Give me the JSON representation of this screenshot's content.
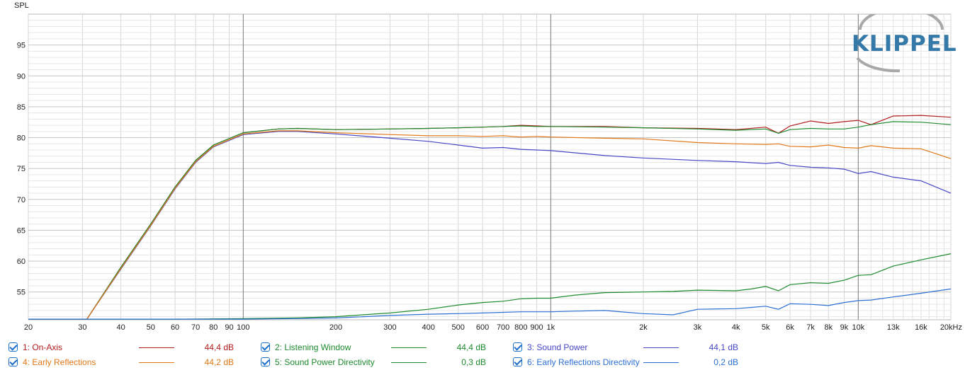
{
  "logo": {
    "text": "KLIPPEL"
  },
  "chart_data": {
    "type": "line",
    "ylabel": "SPL",
    "xlabel": "",
    "xscale": "log",
    "xlim": [
      20,
      20000
    ],
    "ylim": [
      50.5,
      100
    ],
    "x_tick_labels": [
      {
        "v": 20,
        "t": "20"
      },
      {
        "v": 30,
        "t": "30"
      },
      {
        "v": 40,
        "t": "40"
      },
      {
        "v": 50,
        "t": "50"
      },
      {
        "v": 60,
        "t": "60"
      },
      {
        "v": 70,
        "t": "70"
      },
      {
        "v": 80,
        "t": "80"
      },
      {
        "v": 90,
        "t": "90"
      },
      {
        "v": 100,
        "t": "100"
      },
      {
        "v": 200,
        "t": "200"
      },
      {
        "v": 300,
        "t": "300"
      },
      {
        "v": 400,
        "t": "400"
      },
      {
        "v": 500,
        "t": "500"
      },
      {
        "v": 600,
        "t": "600"
      },
      {
        "v": 700,
        "t": "700"
      },
      {
        "v": 800,
        "t": "800"
      },
      {
        "v": 900,
        "t": "900"
      },
      {
        "v": 1000,
        "t": "1k"
      },
      {
        "v": 2000,
        "t": "2k"
      },
      {
        "v": 3000,
        "t": "3k"
      },
      {
        "v": 4000,
        "t": "4k"
      },
      {
        "v": 5000,
        "t": "5k"
      },
      {
        "v": 6000,
        "t": "6k"
      },
      {
        "v": 7000,
        "t": "7k"
      },
      {
        "v": 8000,
        "t": "8k"
      },
      {
        "v": 9000,
        "t": "9k"
      },
      {
        "v": 10000,
        "t": "10k"
      },
      {
        "v": 13000,
        "t": "13k"
      },
      {
        "v": 16000,
        "t": "16k"
      },
      {
        "v": 20000,
        "t": "20kHz"
      }
    ],
    "y_ticks": [
      55,
      60,
      65,
      70,
      75,
      80,
      85,
      90,
      95
    ],
    "grid": true,
    "legend_position": "bottom",
    "series": [
      {
        "name": "1: On-Axis",
        "color": "#b01c1c",
        "legend_value": "44,4 dB",
        "x": [
          20,
          30,
          31,
          40,
          50,
          60,
          70,
          80,
          100,
          130,
          150,
          200,
          300,
          400,
          500,
          600,
          700,
          800,
          900,
          1000,
          1500,
          2000,
          3000,
          4000,
          5000,
          5500,
          6000,
          7000,
          8000,
          9000,
          10000,
          11000,
          13000,
          16000,
          20000
        ],
        "y": [
          50.6,
          50.6,
          50.6,
          59,
          66,
          72,
          76.3,
          78.8,
          80.8,
          81.4,
          81.5,
          81.3,
          81.4,
          81.5,
          81.6,
          81.7,
          81.8,
          82,
          81.9,
          81.8,
          81.8,
          81.6,
          81.5,
          81.3,
          81.7,
          80.7,
          81.9,
          82.7,
          82.3,
          82.6,
          82.8,
          82.1,
          83.5,
          83.6,
          83.3
        ]
      },
      {
        "name": "2: Listening Window",
        "color": "#1e8a2e",
        "legend_value": "44,4 dB",
        "x": [
          20,
          30,
          31,
          40,
          50,
          60,
          70,
          80,
          100,
          130,
          150,
          200,
          300,
          400,
          500,
          600,
          700,
          800,
          900,
          1000,
          1500,
          2000,
          3000,
          4000,
          5000,
          5500,
          6000,
          7000,
          8000,
          9000,
          10000,
          11000,
          13000,
          16000,
          20000
        ],
        "y": [
          50.6,
          50.6,
          50.6,
          59,
          66,
          72,
          76.3,
          78.8,
          80.8,
          81.4,
          81.5,
          81.3,
          81.4,
          81.5,
          81.6,
          81.7,
          81.8,
          81.9,
          81.8,
          81.8,
          81.7,
          81.6,
          81.4,
          81.2,
          81.4,
          80.7,
          81.3,
          81.5,
          81.4,
          81.4,
          81.7,
          82.1,
          82.6,
          82.5,
          82.1
        ]
      },
      {
        "name": "3: Sound Power",
        "color": "#4646c4",
        "legend_value": "44,1 dB",
        "x": [
          20,
          30,
          31,
          40,
          50,
          60,
          70,
          80,
          100,
          130,
          150,
          200,
          300,
          400,
          500,
          600,
          700,
          800,
          900,
          1000,
          1500,
          2000,
          3000,
          4000,
          5000,
          5500,
          6000,
          7000,
          8000,
          9000,
          10000,
          11000,
          13000,
          16000,
          20000
        ],
        "y": [
          50.6,
          50.6,
          50.6,
          58.7,
          65.7,
          71.7,
          76,
          78.5,
          80.5,
          81,
          81,
          80.6,
          79.9,
          79.4,
          78.8,
          78.3,
          78.4,
          78.1,
          78,
          77.9,
          77.1,
          76.7,
          76.3,
          76.1,
          75.8,
          76,
          75.5,
          75.2,
          75.1,
          74.9,
          74.2,
          74.5,
          73.6,
          73,
          71
        ]
      },
      {
        "name": "4: Early Reflections",
        "color": "#e07818",
        "legend_value": "44,2 dB",
        "x": [
          20,
          30,
          31,
          40,
          50,
          60,
          70,
          80,
          100,
          130,
          150,
          200,
          300,
          400,
          500,
          600,
          700,
          800,
          900,
          1000,
          1500,
          2000,
          3000,
          4000,
          5000,
          5500,
          6000,
          7000,
          8000,
          9000,
          10000,
          11000,
          13000,
          16000,
          20000
        ],
        "y": [
          50.6,
          50.6,
          50.6,
          58.8,
          65.8,
          71.8,
          76.1,
          78.6,
          80.6,
          81.1,
          81.1,
          80.8,
          80.5,
          80.3,
          80.3,
          80.2,
          80.3,
          80.1,
          80.2,
          80.1,
          79.9,
          79.8,
          79.2,
          79,
          78.9,
          79,
          78.6,
          78.5,
          78.8,
          78.4,
          78.3,
          78.7,
          78.3,
          78.2,
          76.6
        ]
      },
      {
        "name": "5: Sound Power Directivity",
        "color": "#1e8a2e",
        "legend_value": "0,3 dB",
        "x": [
          20,
          60,
          100,
          150,
          200,
          300,
          400,
          500,
          600,
          700,
          800,
          900,
          1000,
          1200,
          1500,
          2000,
          2500,
          3000,
          4000,
          4500,
          5000,
          5500,
          6000,
          7000,
          8000,
          9000,
          10000,
          11000,
          13000,
          16000,
          20000
        ],
        "y": [
          50.6,
          50.6,
          50.7,
          50.8,
          51,
          51.6,
          52.2,
          52.9,
          53.3,
          53.5,
          53.9,
          54,
          54,
          54.5,
          54.9,
          55,
          55.1,
          55.3,
          55.2,
          55.5,
          55.9,
          55.2,
          56.2,
          56.5,
          56.4,
          56.9,
          57.7,
          57.8,
          59.2,
          60.2,
          61.2
        ]
      },
      {
        "name": "6: Early Reflections Directivity",
        "color": "#2c6fd2",
        "legend_value": "0,2 dB",
        "x": [
          20,
          60,
          100,
          150,
          200,
          300,
          400,
          500,
          600,
          700,
          800,
          900,
          1000,
          1200,
          1500,
          2000,
          2500,
          3000,
          4000,
          4500,
          5000,
          5500,
          6000,
          7000,
          8000,
          9000,
          10000,
          11000,
          13000,
          16000,
          20000
        ],
        "y": [
          50.6,
          50.6,
          50.6,
          50.7,
          50.8,
          51.2,
          51.4,
          51.5,
          51.6,
          51.7,
          51.8,
          51.8,
          51.8,
          51.9,
          52,
          51.5,
          51.3,
          52.2,
          52.3,
          52.5,
          52.7,
          52.2,
          53.1,
          53,
          52.8,
          53.3,
          53.6,
          53.7,
          54.2,
          54.8,
          55.5
        ]
      }
    ]
  }
}
